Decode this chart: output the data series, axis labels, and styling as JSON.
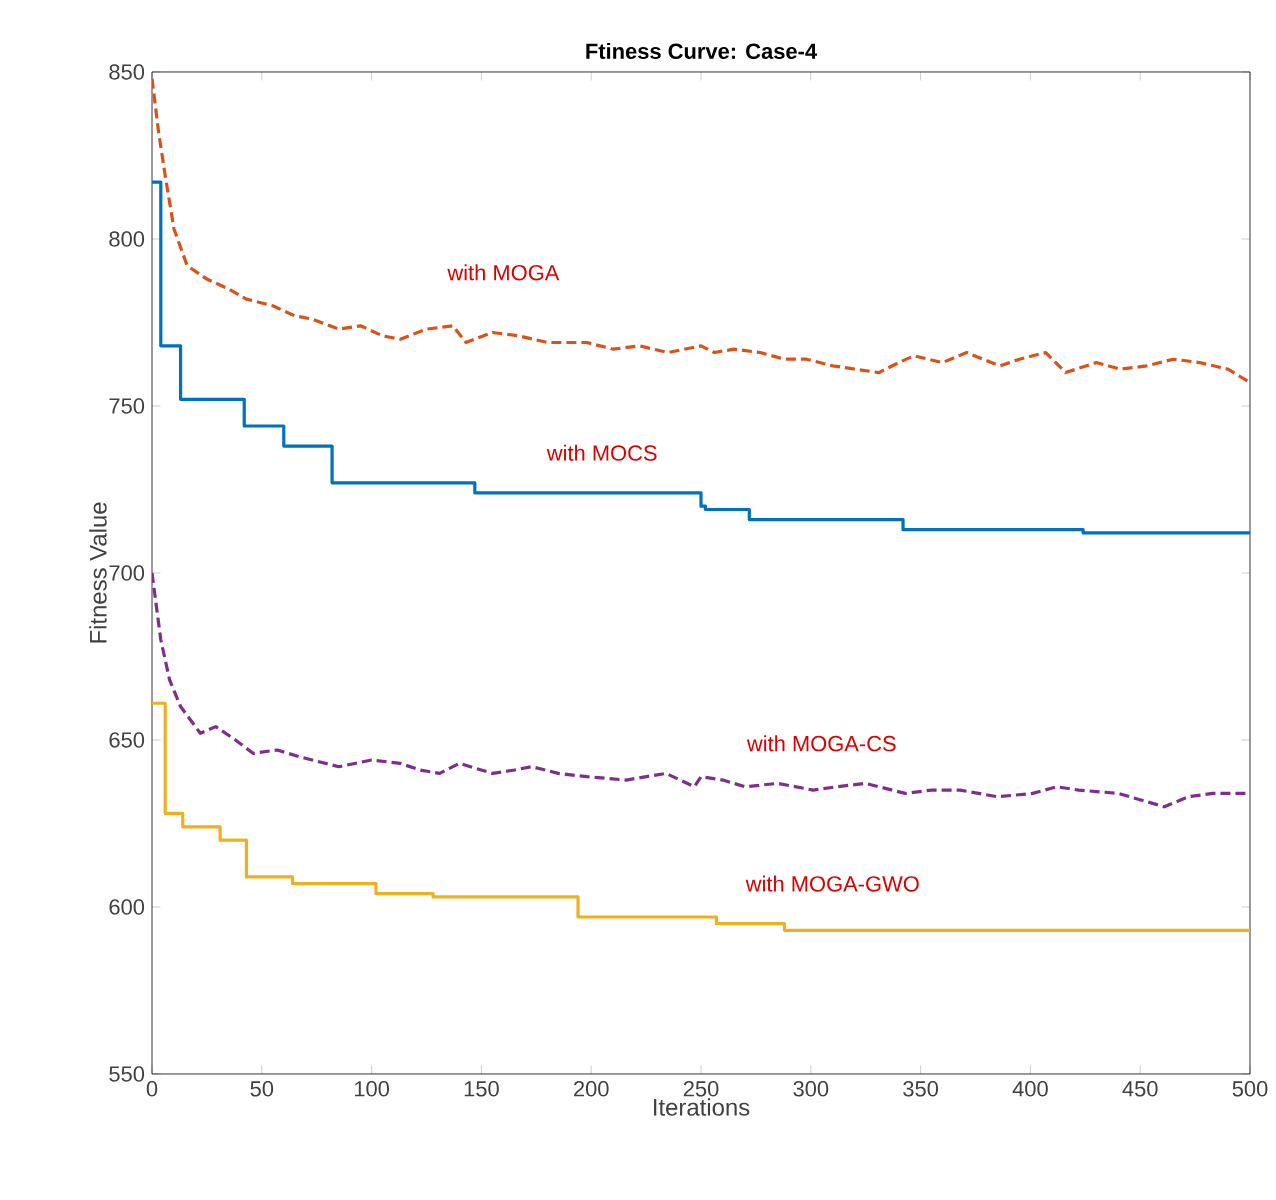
{
  "chart_data": {
    "type": "line",
    "title": "Ftiness Curve: Case-4",
    "xlabel": "Iterations",
    "ylabel": "Fitness Value",
    "xlim": [
      0,
      500
    ],
    "ylim": [
      550,
      850
    ],
    "xticks": [
      0,
      50,
      100,
      150,
      200,
      250,
      300,
      350,
      400,
      450,
      500
    ],
    "yticks": [
      550,
      600,
      650,
      700,
      750,
      800,
      850
    ],
    "marker": "none",
    "series": [
      {
        "type": "line",
        "line_style": "dashed",
        "color": "#d95319",
        "x": [
          0,
          3,
          6,
          10,
          16,
          25,
          35,
          43,
          55,
          65,
          73,
          85,
          95,
          105,
          113,
          125,
          137,
          143,
          155,
          167,
          180,
          198,
          210,
          222,
          235,
          250,
          256,
          265,
          277,
          288,
          298,
          310,
          331,
          340,
          347,
          360,
          371,
          386,
          395,
          407,
          416,
          430,
          441,
          453,
          465,
          477,
          490,
          500
        ],
        "values": [
          848,
          832,
          819,
          803,
          792,
          788,
          785,
          782,
          780,
          777,
          776,
          773,
          774,
          771,
          770,
          773,
          774,
          769,
          772,
          771,
          769,
          769,
          767,
          768,
          766,
          768,
          766,
          767,
          766,
          764,
          764,
          762,
          760,
          763,
          765,
          763,
          766,
          762,
          764,
          766,
          760,
          763,
          761,
          762,
          764,
          763,
          761,
          757
        ]
      },
      {
        "type": "step",
        "color": "#0072bd",
        "x": [
          0,
          4,
          13,
          42,
          60,
          82,
          147,
          250,
          252,
          272,
          342,
          424,
          500
        ],
        "values": [
          817,
          768,
          752,
          744,
          738,
          727,
          724,
          720,
          719,
          716,
          713,
          712,
          712
        ]
      },
      {
        "type": "line",
        "line_style": "dashed",
        "color": "#7e2f8e",
        "x": [
          0,
          4,
          8,
          13,
          22,
          29,
          38,
          46,
          57,
          67,
          85,
          100,
          113,
          122,
          131,
          140,
          155,
          165,
          173,
          185,
          198,
          216,
          234,
          247,
          250,
          260,
          270,
          285,
          301,
          312,
          325,
          343,
          355,
          368,
          385,
          401,
          412,
          422,
          440,
          461,
          472,
          483,
          500
        ],
        "values": [
          700,
          680,
          668,
          660,
          652,
          654,
          650,
          646,
          647,
          645,
          642,
          644,
          643,
          641,
          640,
          643,
          640,
          641,
          642,
          640,
          639,
          638,
          640,
          636,
          639,
          638,
          636,
          637,
          635,
          636,
          637,
          634,
          635,
          635,
          633,
          634,
          636,
          635,
          634,
          630,
          633,
          634,
          634
        ]
      },
      {
        "type": "step",
        "color": "#edb120",
        "x": [
          0,
          6,
          14,
          31,
          43,
          64,
          102,
          128,
          194,
          257,
          288,
          500
        ],
        "values": [
          661,
          628,
          624,
          620,
          609,
          607,
          604,
          603,
          597,
          595,
          593,
          593
        ]
      }
    ],
    "annotations": [
      "with MOGA",
      "with MOCS",
      "with MOGA-CS",
      "with MOGA-GWO"
    ]
  }
}
